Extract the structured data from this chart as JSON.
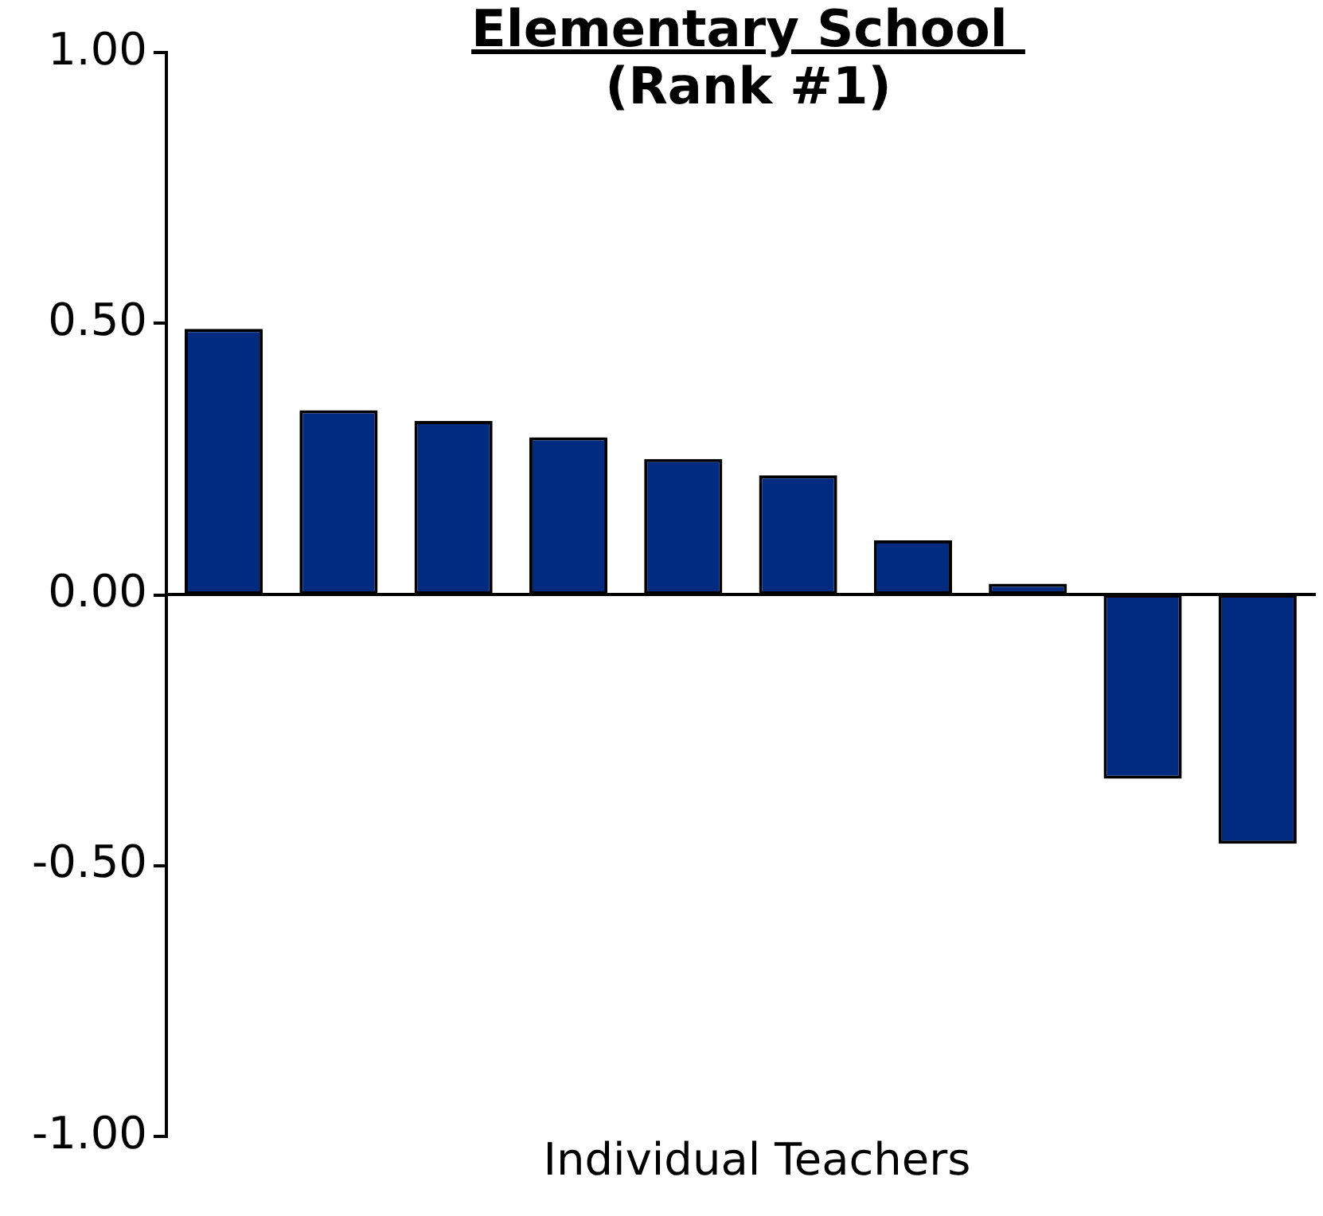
{
  "chart_data": {
    "type": "bar",
    "title": "Elementary School ",
    "subtitle": "(Rank #1)",
    "xlabel": "Individual Teachers",
    "categories": [
      null,
      null,
      null,
      null,
      null,
      null,
      null,
      null,
      null,
      null
    ],
    "values": [
      0.49,
      0.34,
      0.32,
      0.29,
      0.25,
      0.22,
      0.1,
      0.02,
      -0.34,
      -0.46
    ],
    "color": "#002b80",
    "ylim": [
      -1,
      1
    ],
    "yticks": [
      {
        "value": -1,
        "label": "-1.00"
      },
      {
        "value": -0.5,
        "label": "-0.50"
      },
      {
        "value": 0,
        "label": "0.00"
      },
      {
        "value": 0.5,
        "label": "0.50"
      },
      {
        "value": 1,
        "label": "1.00"
      }
    ],
    "legend": false
  }
}
